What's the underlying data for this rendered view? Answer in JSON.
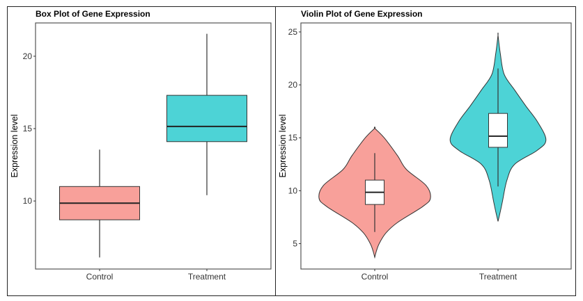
{
  "chart_data": [
    {
      "type": "box",
      "title": "Box Plot of Gene Expression",
      "xlabel": "",
      "ylabel": "Expression level",
      "categories": [
        "Control",
        "Treatment"
      ],
      "ylim": [
        5.3,
        22.3
      ],
      "yticks": [
        10,
        15,
        20
      ],
      "grid": false,
      "legend": "none",
      "colors": [
        "#F8A09A",
        "#4DD3D6"
      ],
      "boxes": [
        {
          "category": "Control",
          "whisker_low": 6.1,
          "q1": 8.7,
          "median": 9.85,
          "q3": 11.0,
          "whisker_high": 13.55
        },
        {
          "category": "Treatment",
          "whisker_low": 10.4,
          "q1": 14.1,
          "median": 15.15,
          "q3": 17.3,
          "whisker_high": 21.55
        }
      ]
    },
    {
      "type": "violin",
      "title": "Violin Plot of Gene Expression",
      "xlabel": "",
      "ylabel": "Expression level",
      "categories": [
        "Control",
        "Treatment"
      ],
      "ylim": [
        2.6,
        25.85
      ],
      "yticks": [
        5,
        10,
        15,
        20,
        25
      ],
      "grid": false,
      "legend": "none",
      "colors": [
        "#F8A09A",
        "#4DD3D6"
      ],
      "violins": [
        {
          "category": "Control",
          "density": [
            [
              3.7,
              0
            ],
            [
              4.3,
              0.03
            ],
            [
              5,
              0.08
            ],
            [
              6,
              0.2
            ],
            [
              7,
              0.41
            ],
            [
              8.5,
              0.86
            ],
            [
              9.3,
              1.0
            ],
            [
              10.5,
              0.92
            ],
            [
              12,
              0.57
            ],
            [
              13.3,
              0.41
            ],
            [
              15,
              0.17
            ],
            [
              15.9,
              0
            ]
          ]
        },
        {
          "category": "Treatment",
          "density": [
            [
              7.1,
              0
            ],
            [
              8,
              0.04
            ],
            [
              9,
              0.08
            ],
            [
              11,
              0.16
            ],
            [
              12.5,
              0.3
            ],
            [
              13.8,
              0.7
            ],
            [
              14.8,
              0.86
            ],
            [
              16.5,
              0.71
            ],
            [
              18,
              0.5
            ],
            [
              19.5,
              0.3
            ],
            [
              21,
              0.11
            ],
            [
              23,
              0.04
            ],
            [
              24.7,
              0
            ]
          ]
        }
      ],
      "boxes": [
        {
          "category": "Control",
          "whisker_low": 6.1,
          "q1": 8.7,
          "median": 9.85,
          "q3": 11.0,
          "whisker_high": 13.55
        },
        {
          "category": "Treatment",
          "whisker_low": 10.4,
          "q1": 14.1,
          "median": 15.15,
          "q3": 17.3,
          "whisker_high": 21.55
        }
      ]
    }
  ]
}
